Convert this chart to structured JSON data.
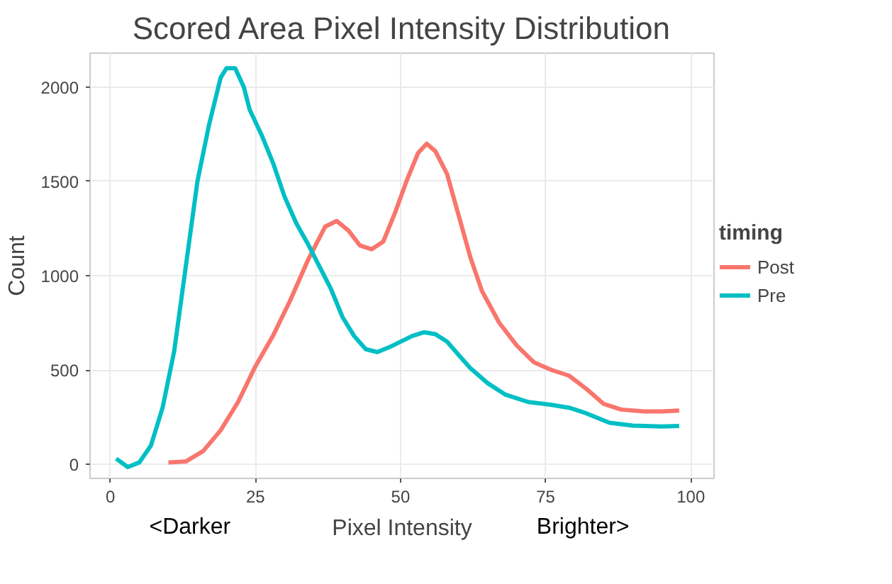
{
  "chart_data": {
    "type": "line",
    "title": "Scored Area Pixel Intensity Distribution",
    "xlabel": "Pixel Intensity",
    "ylabel": "Count",
    "legend_title": "timing",
    "annotations": [
      "<Darker",
      "Brighter>"
    ],
    "xlim": [
      -3.5,
      104
    ],
    "ylim": [
      -75,
      2180
    ],
    "xticks": [
      0,
      25,
      50,
      75,
      100
    ],
    "yticks": [
      0,
      500,
      1000,
      1500,
      2000
    ],
    "grid": true,
    "legend": "right",
    "series": [
      {
        "name": "Post",
        "color": "#f8766d",
        "x": [
          10,
          13,
          16,
          19,
          22,
          25,
          28,
          31,
          34,
          37,
          39,
          41,
          43,
          45,
          47,
          49,
          51,
          53,
          54.5,
          56,
          58,
          60,
          62,
          64,
          67,
          70,
          73,
          76,
          79,
          82,
          85,
          88,
          92,
          95,
          98
        ],
        "values": [
          10,
          15,
          70,
          180,
          330,
          520,
          680,
          870,
          1080,
          1260,
          1290,
          1240,
          1160,
          1140,
          1180,
          1330,
          1500,
          1650,
          1700,
          1660,
          1540,
          1320,
          1100,
          920,
          750,
          630,
          540,
          500,
          470,
          400,
          320,
          290,
          280,
          280,
          285
        ]
      },
      {
        "name": "Pre",
        "color": "#00bfc4",
        "x": [
          1,
          3,
          5,
          7,
          9,
          11,
          13,
          15,
          17,
          19,
          20,
          21.5,
          23,
          24,
          26,
          28,
          30,
          32,
          34,
          36,
          38,
          40,
          42,
          44,
          46,
          48,
          50,
          52,
          54,
          56,
          58,
          60,
          62,
          65,
          68,
          72,
          76,
          79,
          82,
          86,
          90,
          95,
          98
        ],
        "values": [
          30,
          -15,
          10,
          100,
          300,
          600,
          1050,
          1500,
          1800,
          2050,
          2100,
          2100,
          2000,
          1880,
          1750,
          1600,
          1420,
          1280,
          1170,
          1050,
          930,
          780,
          680,
          610,
          595,
          620,
          650,
          680,
          700,
          690,
          650,
          580,
          510,
          430,
          370,
          330,
          315,
          300,
          270,
          220,
          205,
          200,
          203
        ]
      }
    ]
  }
}
